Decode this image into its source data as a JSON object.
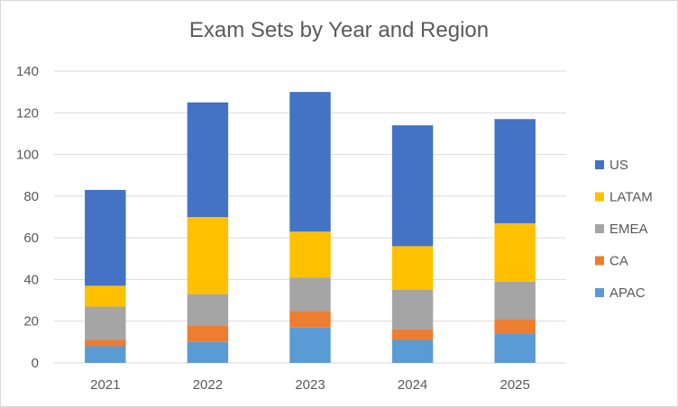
{
  "chart_data": {
    "type": "bar",
    "stacked": true,
    "title": "Exam Sets by Year and Region",
    "xlabel": "",
    "ylabel": "",
    "categories": [
      "2021",
      "2022",
      "2023",
      "2024",
      "2025"
    ],
    "ylim": [
      0,
      140
    ],
    "yticks": [
      0,
      20,
      40,
      60,
      80,
      100,
      120,
      140
    ],
    "grid": true,
    "legend": "right",
    "series": [
      {
        "name": "APAC",
        "color": "#5b9bd5",
        "values": [
          8,
          10,
          17,
          11,
          14
        ]
      },
      {
        "name": "CA",
        "color": "#ed7d31",
        "values": [
          3,
          8,
          8,
          5,
          7
        ]
      },
      {
        "name": "EMEA",
        "color": "#a5a5a5",
        "values": [
          16,
          15,
          16,
          19,
          18
        ]
      },
      {
        "name": "LATAM",
        "color": "#ffc000",
        "values": [
          10,
          37,
          22,
          21,
          28
        ]
      },
      {
        "name": "US",
        "color": "#4472c4",
        "values": [
          46,
          55,
          67,
          58,
          50
        ]
      }
    ]
  }
}
